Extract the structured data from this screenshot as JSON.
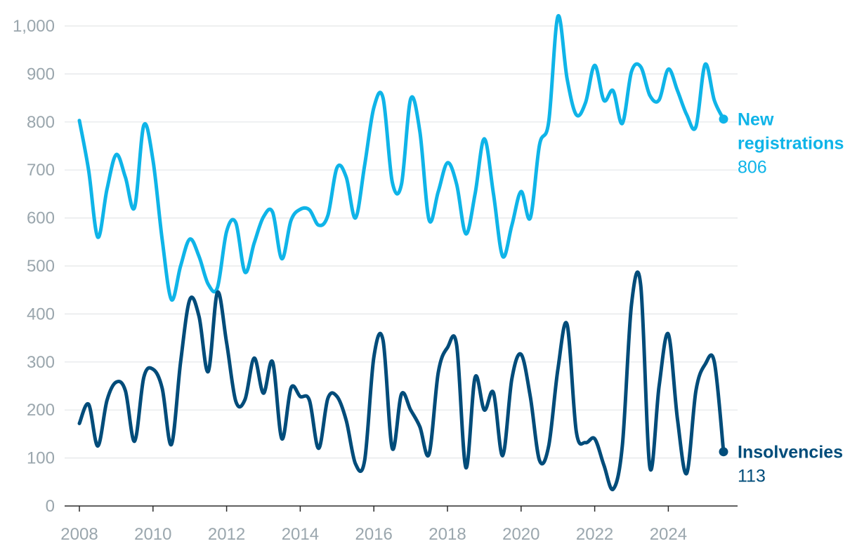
{
  "chart_data": {
    "type": "line",
    "title": "",
    "xlabel": "",
    "ylabel": "",
    "xlim": [
      2008,
      2025.5
    ],
    "ylim": [
      0,
      1000
    ],
    "grid": true,
    "legend": "direct-labels-right",
    "x_ticks": [
      2008,
      2010,
      2012,
      2014,
      2016,
      2018,
      2020,
      2022,
      2024
    ],
    "x_tick_labels": [
      "2008",
      "2010",
      "2012",
      "2014",
      "2016",
      "2018",
      "2020",
      "2022",
      "2024"
    ],
    "y_ticks": [
      0,
      100,
      200,
      300,
      400,
      500,
      600,
      700,
      800,
      900,
      1000
    ],
    "y_tick_labels": [
      "0",
      "100",
      "200",
      "300",
      "400",
      "500",
      "600",
      "700",
      "800",
      "900",
      "1,000"
    ],
    "x": [
      2008.0,
      2008.25,
      2008.5,
      2008.75,
      2009.0,
      2009.25,
      2009.5,
      2009.75,
      2010.0,
      2010.25,
      2010.5,
      2010.75,
      2011.0,
      2011.25,
      2011.5,
      2011.75,
      2012.0,
      2012.25,
      2012.5,
      2012.75,
      2013.0,
      2013.25,
      2013.5,
      2013.75,
      2014.0,
      2014.25,
      2014.5,
      2014.75,
      2015.0,
      2015.25,
      2015.5,
      2015.75,
      2016.0,
      2016.25,
      2016.5,
      2016.75,
      2017.0,
      2017.25,
      2017.5,
      2017.75,
      2018.0,
      2018.25,
      2018.5,
      2018.75,
      2019.0,
      2019.25,
      2019.5,
      2019.75,
      2020.0,
      2020.25,
      2020.5,
      2020.75,
      2021.0,
      2021.25,
      2021.5,
      2021.75,
      2022.0,
      2022.25,
      2022.5,
      2022.75,
      2023.0,
      2023.25,
      2023.5,
      2023.75,
      2024.0,
      2024.25,
      2024.5,
      2024.75,
      2025.0,
      2025.25,
      2025.5
    ],
    "series": [
      {
        "name": "New registrations",
        "color": "#0fb4e8",
        "end_label": "806",
        "values": [
          803,
          700,
          560,
          660,
          732,
          685,
          622,
          793,
          720,
          555,
          430,
          500,
          556,
          520,
          462,
          455,
          572,
          590,
          487,
          548,
          602,
          612,
          515,
          595,
          618,
          617,
          585,
          605,
          705,
          685,
          600,
          710,
          830,
          850,
          675,
          670,
          848,
          780,
          596,
          655,
          715,
          670,
          567,
          650,
          765,
          650,
          520,
          585,
          655,
          600,
          752,
          800,
          1020,
          890,
          815,
          840,
          918,
          845,
          865,
          797,
          905,
          915,
          855,
          846,
          910,
          865,
          815,
          790,
          920,
          845,
          806
        ]
      },
      {
        "name": "Insolvencies",
        "color": "#004c7a",
        "end_label": "113",
        "values": [
          172,
          212,
          125,
          220,
          258,
          240,
          135,
          268,
          285,
          245,
          128,
          300,
          430,
          395,
          280,
          445,
          340,
          218,
          222,
          308,
          235,
          300,
          140,
          246,
          228,
          220,
          120,
          224,
          228,
          178,
          88,
          95,
          310,
          345,
          120,
          233,
          200,
          165,
          108,
          278,
          330,
          335,
          80,
          268,
          200,
          236,
          105,
          265,
          316,
          228,
          95,
          125,
          285,
          378,
          155,
          132,
          140,
          85,
          35,
          125,
          420,
          460,
          80,
          250,
          358,
          180,
          68,
          240,
          295,
          300,
          113
        ]
      }
    ]
  }
}
